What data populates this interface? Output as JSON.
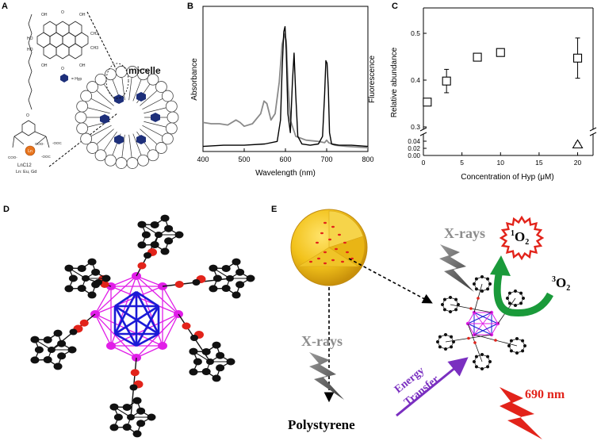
{
  "panels": {
    "a": {
      "label": "A",
      "legend_text": "= Hyp",
      "complex_name": "LnC12",
      "complex_ln": "Ln: Eu, Gd",
      "micelle_label": "micelle",
      "metal_symbol": "Ln",
      "structure_labels": [
        "OH",
        "O",
        "OH",
        "HO",
        "CH3",
        "HO",
        "CH3",
        "OH",
        "O",
        "OH"
      ],
      "carboxylates": [
        "COO-",
        "COO-",
        "-OOC",
        "-OOC"
      ]
    },
    "b": {
      "label": "B",
      "ylabel": "Absorbance",
      "yright": "Fluorescence",
      "xlabel": "Wavelength  (nm)"
    },
    "c": {
      "label": "C",
      "ylabel": "Relative abundance",
      "xlabel": "Concentration of Hyp (μM)"
    },
    "d": {
      "label": "D"
    },
    "e": {
      "label": "E",
      "xrays_top": "X-rays",
      "xrays_bottom": "X-rays",
      "polystyrene": "Polystyrene",
      "energy_transfer_line1": "Energy",
      "energy_transfer_line2": "Transfer",
      "singlet_oxygen_sup": "1",
      "singlet_oxygen_main": "O",
      "singlet_oxygen_sub": "2",
      "triplet_oxygen_sup": "3",
      "triplet_oxygen_main": "O",
      "triplet_oxygen_sub": "2",
      "emission": "690 nm"
    }
  },
  "colors": {
    "grey_trace": "#8a8a8a",
    "sphere": "#f2c21b",
    "magenta": "#e11ee8",
    "blue": "#1a1ad6",
    "red": "#e2231a",
    "green": "#1a9a3a",
    "purple": "#7a2fc0"
  },
  "chart_data": [
    {
      "panel": "B",
      "type": "line",
      "xlabel": "Wavelength  (nm)",
      "ylabel": "Absorbance",
      "y2label": "Fluorescence",
      "xlim": [
        400,
        800
      ],
      "xticks": [
        400,
        500,
        600,
        700,
        800
      ],
      "series": [
        {
          "color": "#8a8a8a",
          "x": [
            400,
            420,
            440,
            460,
            480,
            490,
            500,
            520,
            540,
            548,
            555,
            565,
            575,
            585,
            592,
            598,
            602,
            606,
            612,
            625,
            650,
            680,
            695,
            700,
            705,
            720,
            750,
            800
          ],
          "y": [
            0.23,
            0.22,
            0.22,
            0.21,
            0.25,
            0.23,
            0.2,
            0.22,
            0.3,
            0.4,
            0.38,
            0.25,
            0.3,
            0.55,
            0.85,
            0.93,
            0.88,
            0.55,
            0.25,
            0.12,
            0.09,
            0.08,
            0.07,
            0.09,
            0.07,
            0.05,
            0.04,
            0.03
          ]
        },
        {
          "color": "#000000",
          "x": [
            400,
            450,
            500,
            550,
            580,
            588,
            592,
            596,
            599,
            602,
            606,
            612,
            617,
            621,
            625,
            630,
            640,
            660,
            680,
            690,
            695,
            698,
            701,
            704,
            707,
            712,
            730,
            760,
            800
          ],
          "y": [
            0.04,
            0.05,
            0.05,
            0.06,
            0.08,
            0.25,
            0.65,
            0.95,
            0.99,
            0.8,
            0.3,
            0.15,
            0.55,
            0.78,
            0.45,
            0.12,
            0.06,
            0.05,
            0.06,
            0.12,
            0.45,
            0.72,
            0.7,
            0.5,
            0.15,
            0.06,
            0.05,
            0.05,
            0.04
          ]
        }
      ]
    },
    {
      "panel": "C",
      "type": "scatter",
      "xlabel": "Concentration of Hyp (μM)",
      "ylabel": "Relative abundance",
      "xlim": [
        0,
        22
      ],
      "xticks": [
        0,
        5,
        10,
        15,
        20
      ],
      "yticks_upper": [
        0.3,
        0.4,
        0.5
      ],
      "yticks_lower": [
        0.0,
        0.02,
        0.04
      ],
      "axis_break": true,
      "series": [
        {
          "marker": "square",
          "x": [
            0.5,
            3,
            7,
            10,
            20
          ],
          "y": [
            0.353,
            0.398,
            0.449,
            0.459,
            0.447
          ],
          "yerr": [
            0.005,
            0.025,
            0.004,
            0.006,
            0.043
          ]
        },
        {
          "marker": "triangle",
          "x": [
            20
          ],
          "y": [
            0.03
          ],
          "yerr": [
            0.006
          ]
        }
      ]
    }
  ]
}
